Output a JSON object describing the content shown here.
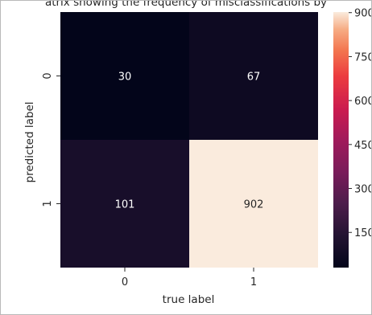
{
  "chart_data": {
    "type": "heatmap",
    "title": "atrix showing the frequency of misclassifications by",
    "xlabel": "true label",
    "ylabel": "predicted label",
    "x_categories": [
      "0",
      "1"
    ],
    "y_categories": [
      "0",
      "1"
    ],
    "values": [
      [
        30,
        67
      ],
      [
        101,
        902
      ]
    ],
    "cell_labels": [
      [
        "30",
        "67"
      ],
      [
        "101",
        "902"
      ]
    ],
    "colorbar": {
      "colormap": "rocket",
      "vmin": 30,
      "vmax": 902,
      "ticks": [
        900,
        750,
        600,
        450,
        300,
        150
      ],
      "tick_labels": [
        "900",
        "750",
        "600",
        "450",
        "300",
        "150"
      ]
    },
    "grid": false
  }
}
